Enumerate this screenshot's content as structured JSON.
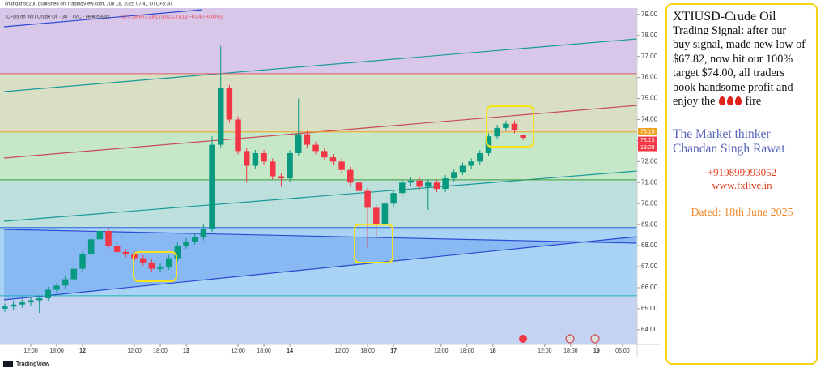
{
  "header": {
    "published": "chandanso2u0 published on TradingView.com, Jun 18, 2025 07:41 UTC+5:30",
    "brand": "TradingView"
  },
  "chart_data": {
    "type": "candlestick",
    "legend_title": "CFDs on WTI Crude Oil · 30 · TVC · Heikin Ashi",
    "legend_ohlc": "O73.28 H73.28 L73.01 C73.13 −0.04 (−0.05%)",
    "up_color": "#089981",
    "down_color": "#f23645",
    "open": [
      65.0,
      65.1,
      65.2,
      65.3,
      65.4,
      65.5,
      65.9,
      66.1,
      66.4,
      66.9,
      67.6,
      68.3,
      68.7,
      68.0,
      67.7,
      67.6,
      67.4,
      67.2,
      66.9,
      67.0,
      67.4,
      68.0,
      68.2,
      68.4,
      68.8,
      72.8,
      75.5,
      74.0,
      72.5,
      71.8,
      72.4,
      72.0,
      71.3,
      71.2,
      72.4,
      73.3,
      72.8,
      72.5,
      72.2,
      72.0,
      71.6,
      71.0,
      70.6,
      69.8,
      69.0,
      70.0,
      70.5,
      71.0,
      71.1,
      70.8,
      71.0,
      70.7,
      71.2,
      71.5,
      71.8,
      72.0,
      72.4,
      73.2,
      73.6,
      73.8,
      73.28
    ],
    "high": [
      65.25,
      65.35,
      65.45,
      65.55,
      65.65,
      66.05,
      66.25,
      66.55,
      67.05,
      67.75,
      68.45,
      68.9,
      68.85,
      68.15,
      67.85,
      67.75,
      67.55,
      67.35,
      67.15,
      67.55,
      68.15,
      68.35,
      68.55,
      69.0,
      73.2,
      77.5,
      75.65,
      74.15,
      72.65,
      72.55,
      72.55,
      72.15,
      71.45,
      72.55,
      75.0,
      73.45,
      72.95,
      72.65,
      72.35,
      72.15,
      71.75,
      71.15,
      70.75,
      69.95,
      70.15,
      70.65,
      71.15,
      71.25,
      71.25,
      71.15,
      71.15,
      71.35,
      71.65,
      71.95,
      72.15,
      72.55,
      73.35,
      73.75,
      73.95,
      73.95,
      73.28
    ],
    "low": [
      64.85,
      64.95,
      65.05,
      65.15,
      64.8,
      65.35,
      65.75,
      65.95,
      66.25,
      66.75,
      67.45,
      68.15,
      67.85,
      67.55,
      67.45,
      67.25,
      67.05,
      66.75,
      66.75,
      66.85,
      67.25,
      67.85,
      68.05,
      68.25,
      68.65,
      72.65,
      73.85,
      72.35,
      71.0,
      71.65,
      71.85,
      71.15,
      70.8,
      71.05,
      72.25,
      72.65,
      72.35,
      72.05,
      71.85,
      71.45,
      70.85,
      70.45,
      67.9,
      68.4,
      68.85,
      69.85,
      70.35,
      70.85,
      70.65,
      69.7,
      70.55,
      70.55,
      71.05,
      71.35,
      71.65,
      71.85,
      72.25,
      73.05,
      73.45,
      73.35,
      73.01
    ],
    "close": [
      65.1,
      65.2,
      65.3,
      65.4,
      65.5,
      65.9,
      66.1,
      66.4,
      66.9,
      67.6,
      68.3,
      68.7,
      68.0,
      67.7,
      67.6,
      67.4,
      67.2,
      66.9,
      67.0,
      67.4,
      68.0,
      68.2,
      68.4,
      68.8,
      72.8,
      75.5,
      74.0,
      72.5,
      71.8,
      72.4,
      72.0,
      71.3,
      71.2,
      72.4,
      73.3,
      72.8,
      72.5,
      72.2,
      72.0,
      71.6,
      71.0,
      70.6,
      69.8,
      69.0,
      70.0,
      70.5,
      71.0,
      71.1,
      70.8,
      71.0,
      70.7,
      71.2,
      71.5,
      71.8,
      72.0,
      72.4,
      73.2,
      73.6,
      73.8,
      73.5,
      73.13
    ],
    "xlim": [
      -0.56,
      73.2
    ],
    "xticks": [
      {
        "value": 3,
        "label": "12:00"
      },
      {
        "value": 6,
        "label": "18:00"
      },
      {
        "value": 9,
        "label": "12"
      },
      {
        "value": 15,
        "label": "12:00"
      },
      {
        "value": 18,
        "label": "18:00"
      },
      {
        "value": 21,
        "label": "13"
      },
      {
        "value": 27,
        "label": "12:00"
      },
      {
        "value": 30,
        "label": "18:00"
      },
      {
        "value": 33,
        "label": "14"
      },
      {
        "value": 39,
        "label": "12:00"
      },
      {
        "value": 42,
        "label": "18:00"
      },
      {
        "value": 45,
        "label": "17"
      },
      {
        "value": 50.5,
        "label": "12:00"
      },
      {
        "value": 53.5,
        "label": "18:00"
      },
      {
        "value": 56.5,
        "label": "18"
      },
      {
        "value": 62.5,
        "label": "12:00"
      },
      {
        "value": 65.5,
        "label": "18:00"
      },
      {
        "value": 68.5,
        "label": "19"
      },
      {
        "value": 71.5,
        "label": "06:00"
      }
    ],
    "ylim": [
      63.3,
      79.3
    ],
    "yticks": [
      {
        "value": 64,
        "label": "64.00"
      },
      {
        "value": 65,
        "label": "65.00"
      },
      {
        "value": 66,
        "label": "66.00"
      },
      {
        "value": 67,
        "label": "67.00"
      },
      {
        "value": 68,
        "label": "68.00"
      },
      {
        "value": 69,
        "label": "69.00"
      },
      {
        "value": 70,
        "label": "70.00"
      },
      {
        "value": 71,
        "label": "71.00"
      },
      {
        "value": 72,
        "label": "72.00"
      },
      {
        "value": 73,
        "label": "73.00"
      },
      {
        "value": 74,
        "label": "74.00"
      },
      {
        "value": 75,
        "label": "75.00"
      },
      {
        "value": 76,
        "label": "76.00"
      },
      {
        "value": 77,
        "label": "77.00"
      },
      {
        "value": 78,
        "label": "78.00"
      },
      {
        "value": 79,
        "label": "79.00"
      }
    ],
    "levels": [
      {
        "value": 76.18,
        "color": "#e05a6a"
      },
      {
        "value": 73.41,
        "color": "#f0a020"
      },
      {
        "value": 71.13,
        "color": "#3a9a3a"
      },
      {
        "value": 68.86,
        "color": "#2a62e0"
      },
      {
        "value": 65.62,
        "color": "#20b0b8"
      }
    ],
    "price_labels": [
      {
        "value": 73.19,
        "label": "73.19",
        "color": "#f0a020"
      },
      {
        "value": 73.13,
        "label": "73.13",
        "color": "#f23645"
      }
    ],
    "countdown": "18:28"
  },
  "panel": {
    "message_lines": [
      "XTIUSD-Crude Oil",
      "Trading Signal: after our",
      "buy signal, made new low of",
      "$67.82, now hit our 100%",
      "target $74.00, all traders",
      "book handsome profit and"
    ],
    "last_line_start": "enjoy the",
    "last_line_end": "fire",
    "signature": [
      "The Market thinker",
      "Chandan Singh Rawat"
    ],
    "phone": "+919899993052",
    "website": "www.fxlive.in",
    "date": "Dated: 18th June 2025"
  }
}
